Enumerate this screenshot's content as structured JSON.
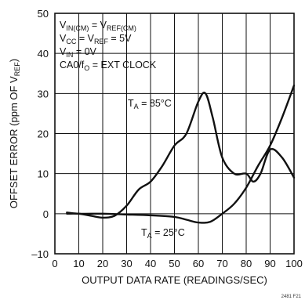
{
  "chart_data": {
    "type": "line",
    "xlabel": "OUTPUT DATA RATE (READINGS/SEC)",
    "ylabel": "OFFSET ERROR (ppm OF V_REF)",
    "xlim": [
      0,
      100
    ],
    "ylim": [
      -10,
      50
    ],
    "x_ticks": [
      0,
      10,
      20,
      30,
      40,
      50,
      60,
      70,
      80,
      90,
      100
    ],
    "y_ticks": [
      -10,
      0,
      10,
      20,
      30,
      40,
      50
    ],
    "grid": true,
    "conditions": [
      {
        "main": "V",
        "sub": "IN(CM)",
        "mid": " = V",
        "sub2": "REF(CM)",
        "tail": ""
      },
      {
        "main": "V",
        "sub": "CC",
        "mid": " = V",
        "sub2": "REF",
        "tail": " = 5V"
      },
      {
        "main": "V",
        "sub": "IN",
        "mid": " = 0V",
        "sub2": "",
        "tail": ""
      },
      {
        "main": "CA0/f",
        "sub": "O",
        "mid": " = EXT CLOCK",
        "sub2": "",
        "tail": ""
      }
    ],
    "series": [
      {
        "label_main": "T",
        "label_sub": "A",
        "label_tail": " = 85°C",
        "x": [
          5,
          10,
          15,
          20,
          25,
          30,
          35,
          40,
          45,
          50,
          55,
          60,
          63,
          66,
          70,
          75,
          80,
          83,
          86,
          90,
          95,
          100
        ],
        "y": [
          0,
          0,
          -0.5,
          -1,
          -0.5,
          2,
          6,
          8,
          12,
          17,
          20,
          28,
          30,
          24,
          14,
          10,
          10,
          8,
          10,
          16,
          14,
          9
        ]
      },
      {
        "label_main": "T",
        "label_sub": "A",
        "label_tail": " = 25°C",
        "x": [
          5,
          10,
          20,
          30,
          40,
          50,
          55,
          60,
          65,
          70,
          75,
          80,
          85,
          90,
          95,
          100
        ],
        "y": [
          0.3,
          0,
          0,
          -0.2,
          -0.4,
          -0.8,
          -1.5,
          -2.2,
          -2,
          0,
          2.5,
          6.5,
          12,
          17,
          24,
          32
        ]
      }
    ],
    "figure_id": "2481 F21"
  }
}
